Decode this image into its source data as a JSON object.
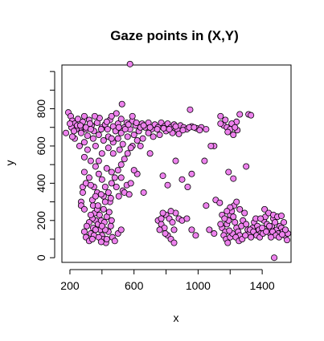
{
  "chart_data": {
    "type": "scatter",
    "title": "Gaze points in (X,Y)",
    "xlabel": "x",
    "ylabel": "y",
    "xlim": [
      150,
      1580
    ],
    "ylim": [
      -25,
      1035
    ],
    "xticks": [
      200,
      600,
      1000,
      1400
    ],
    "yticks": [
      0,
      200,
      400,
      600,
      800
    ],
    "minor_xticks": [
      400,
      800,
      1200
    ],
    "minor_yticks": [
      100,
      300,
      500,
      700,
      900,
      1000
    ],
    "point_color": "#ee82ee",
    "grid": false,
    "legend": "none",
    "points": [
      [
        575,
        1040
      ],
      [
        525,
        825
      ],
      [
        950,
        795
      ],
      [
        175,
        670
      ],
      [
        190,
        780
      ],
      [
        205,
        760
      ],
      [
        215,
        735
      ],
      [
        230,
        720
      ],
      [
        250,
        745
      ],
      [
        265,
        700
      ],
      [
        280,
        730
      ],
      [
        300,
        690
      ],
      [
        320,
        740
      ],
      [
        335,
        710
      ],
      [
        350,
        680
      ],
      [
        370,
        725
      ],
      [
        385,
        750
      ],
      [
        400,
        700
      ],
      [
        420,
        715
      ],
      [
        435,
        690
      ],
      [
        450,
        740
      ],
      [
        470,
        705
      ],
      [
        485,
        680
      ],
      [
        500,
        720
      ],
      [
        520,
        745
      ],
      [
        540,
        700
      ],
      [
        555,
        725
      ],
      [
        575,
        690
      ],
      [
        590,
        735
      ],
      [
        610,
        710
      ],
      [
        630,
        680
      ],
      [
        650,
        720
      ],
      [
        670,
        700
      ],
      [
        690,
        725
      ],
      [
        710,
        690
      ],
      [
        730,
        715
      ],
      [
        750,
        700
      ],
      [
        770,
        725
      ],
      [
        790,
        705
      ],
      [
        810,
        720
      ],
      [
        830,
        700
      ],
      [
        850,
        715
      ],
      [
        870,
        690
      ],
      [
        890,
        710
      ],
      [
        910,
        700
      ],
      [
        930,
        690
      ],
      [
        960,
        705
      ],
      [
        990,
        695
      ],
      [
        1020,
        700
      ],
      [
        1050,
        690
      ],
      [
        210,
        700
      ],
      [
        240,
        690
      ],
      [
        270,
        670
      ],
      [
        310,
        655
      ],
      [
        345,
        640
      ],
      [
        380,
        660
      ],
      [
        410,
        630
      ],
      [
        440,
        650
      ],
      [
        470,
        620
      ],
      [
        500,
        640
      ],
      [
        530,
        610
      ],
      [
        560,
        650
      ],
      [
        590,
        600
      ],
      [
        620,
        630
      ],
      [
        655,
        640
      ],
      [
        690,
        670
      ],
      [
        720,
        650
      ],
      [
        760,
        660
      ],
      [
        800,
        680
      ],
      [
        840,
        670
      ],
      [
        880,
        665
      ],
      [
        230,
        640
      ],
      [
        260,
        600
      ],
      [
        290,
        620
      ],
      [
        300,
        700
      ],
      [
        325,
        720
      ],
      [
        355,
        760
      ],
      [
        460,
        760
      ],
      [
        490,
        775
      ],
      [
        200,
        720
      ],
      [
        215,
        650
      ],
      [
        225,
        680
      ],
      [
        245,
        710
      ],
      [
        290,
        760
      ],
      [
        590,
        760
      ],
      [
        460,
        640
      ],
      [
        520,
        670
      ],
      [
        545,
        690
      ],
      [
        600,
        660
      ],
      [
        640,
        700
      ],
      [
        700,
        700
      ],
      [
        745,
        690
      ],
      [
        785,
        695
      ],
      [
        820,
        690
      ],
      [
        860,
        705
      ],
      [
        905,
        685
      ],
      [
        945,
        700
      ],
      [
        975,
        700
      ],
      [
        1010,
        685
      ],
      [
        265,
        710
      ],
      [
        330,
        690
      ],
      [
        395,
        690
      ],
      [
        430,
        730
      ],
      [
        505,
        700
      ],
      [
        565,
        715
      ],
      [
        615,
        725
      ],
      [
        660,
        710
      ],
      [
        1140,
        760
      ],
      [
        1160,
        710
      ],
      [
        1180,
        700
      ],
      [
        1200,
        690
      ],
      [
        1220,
        660
      ],
      [
        1240,
        730
      ],
      [
        1260,
        770
      ],
      [
        1210,
        720
      ],
      [
        1170,
        740
      ],
      [
        1245,
        685
      ],
      [
        1185,
        675
      ],
      [
        1315,
        770
      ],
      [
        1330,
        765
      ],
      [
        1100,
        600
      ],
      [
        1140,
        720
      ],
      [
        1230,
        700
      ],
      [
        290,
        540
      ],
      [
        330,
        520
      ],
      [
        360,
        490
      ],
      [
        380,
        450
      ],
      [
        400,
        420
      ],
      [
        420,
        380
      ],
      [
        440,
        350
      ],
      [
        460,
        400
      ],
      [
        480,
        430
      ],
      [
        500,
        470
      ],
      [
        520,
        500
      ],
      [
        540,
        530
      ],
      [
        560,
        560
      ],
      [
        580,
        590
      ],
      [
        440,
        590
      ],
      [
        400,
        560
      ],
      [
        360,
        600
      ],
      [
        310,
        580
      ],
      [
        290,
        460
      ],
      [
        320,
        430
      ],
      [
        350,
        380
      ],
      [
        370,
        350
      ],
      [
        410,
        330
      ],
      [
        450,
        300
      ],
      [
        490,
        380
      ],
      [
        530,
        360
      ],
      [
        470,
        560
      ],
      [
        510,
        580
      ],
      [
        280,
        380
      ],
      [
        300,
        400
      ],
      [
        280,
        350
      ],
      [
        270,
        300
      ],
      [
        270,
        280
      ],
      [
        290,
        260
      ],
      [
        330,
        390
      ],
      [
        345,
        280
      ],
      [
        380,
        520
      ],
      [
        430,
        480
      ],
      [
        520,
        430
      ],
      [
        555,
        390
      ],
      [
        540,
        350
      ],
      [
        505,
        330
      ],
      [
        460,
        460
      ],
      [
        580,
        400
      ],
      [
        570,
        340
      ],
      [
        620,
        450
      ],
      [
        660,
        350
      ],
      [
        600,
        470
      ],
      [
        640,
        600
      ],
      [
        700,
        560
      ],
      [
        780,
        440
      ],
      [
        810,
        390
      ],
      [
        860,
        520
      ],
      [
        900,
        420
      ],
      [
        935,
        380
      ],
      [
        960,
        450
      ],
      [
        1040,
        520
      ],
      [
        1080,
        600
      ],
      [
        1110,
        310
      ],
      [
        1135,
        295
      ],
      [
        1190,
        460
      ],
      [
        1220,
        425
      ],
      [
        1300,
        490
      ],
      [
        1050,
        280
      ],
      [
        290,
        140
      ],
      [
        300,
        110
      ],
      [
        320,
        90
      ],
      [
        330,
        130
      ],
      [
        345,
        160
      ],
      [
        360,
        200
      ],
      [
        375,
        180
      ],
      [
        390,
        150
      ],
      [
        400,
        120
      ],
      [
        410,
        100
      ],
      [
        425,
        80
      ],
      [
        440,
        140
      ],
      [
        455,
        170
      ],
      [
        465,
        110
      ],
      [
        480,
        90
      ],
      [
        500,
        130
      ],
      [
        520,
        150
      ],
      [
        340,
        210
      ],
      [
        355,
        240
      ],
      [
        370,
        260
      ],
      [
        385,
        230
      ],
      [
        395,
        200
      ],
      [
        415,
        190
      ],
      [
        430,
        220
      ],
      [
        445,
        245
      ],
      [
        320,
        190
      ],
      [
        305,
        170
      ],
      [
        350,
        120
      ],
      [
        380,
        110
      ],
      [
        420,
        150
      ],
      [
        460,
        200
      ],
      [
        340,
        100
      ],
      [
        395,
        85
      ],
      [
        430,
        100
      ],
      [
        360,
        150
      ],
      [
        400,
        170
      ],
      [
        330,
        230
      ],
      [
        375,
        280
      ],
      [
        410,
        260
      ],
      [
        340,
        310
      ],
      [
        420,
        300
      ],
      [
        455,
        320
      ],
      [
        360,
        330
      ],
      [
        395,
        340
      ],
      [
        750,
        200
      ],
      [
        770,
        180
      ],
      [
        790,
        160
      ],
      [
        800,
        230
      ],
      [
        820,
        210
      ],
      [
        840,
        190
      ],
      [
        850,
        150
      ],
      [
        860,
        240
      ],
      [
        780,
        240
      ],
      [
        810,
        120
      ],
      [
        830,
        100
      ],
      [
        850,
        80
      ],
      [
        760,
        150
      ],
      [
        880,
        210
      ],
      [
        900,
        200
      ],
      [
        930,
        210
      ],
      [
        960,
        150
      ],
      [
        985,
        120
      ],
      [
        795,
        130
      ],
      [
        830,
        250
      ],
      [
        770,
        210
      ],
      [
        1070,
        150
      ],
      [
        1100,
        130
      ],
      [
        1150,
        160
      ],
      [
        1170,
        140
      ],
      [
        1180,
        180
      ],
      [
        1190,
        200
      ],
      [
        1200,
        230
      ],
      [
        1210,
        250
      ],
      [
        1220,
        220
      ],
      [
        1230,
        190
      ],
      [
        1240,
        160
      ],
      [
        1250,
        140
      ],
      [
        1260,
        120
      ],
      [
        1270,
        170
      ],
      [
        1280,
        200
      ],
      [
        1290,
        240
      ],
      [
        1300,
        180
      ],
      [
        1310,
        150
      ],
      [
        1320,
        130
      ],
      [
        1330,
        110
      ],
      [
        1340,
        160
      ],
      [
        1350,
        190
      ],
      [
        1360,
        210
      ],
      [
        1370,
        170
      ],
      [
        1380,
        150
      ],
      [
        1390,
        130
      ],
      [
        1400,
        160
      ],
      [
        1410,
        200
      ],
      [
        1420,
        220
      ],
      [
        1430,
        180
      ],
      [
        1440,
        150
      ],
      [
        1450,
        130
      ],
      [
        1460,
        170
      ],
      [
        1470,
        210
      ],
      [
        1480,
        190
      ],
      [
        1490,
        150
      ],
      [
        1500,
        130
      ],
      [
        1510,
        170
      ],
      [
        1520,
        160
      ],
      [
        1530,
        140
      ],
      [
        1540,
        120
      ],
      [
        1555,
        95
      ],
      [
        1560,
        130
      ],
      [
        1545,
        150
      ],
      [
        1160,
        120
      ],
      [
        1175,
        100
      ],
      [
        1185,
        80
      ],
      [
        1200,
        110
      ],
      [
        1215,
        130
      ],
      [
        1235,
        110
      ],
      [
        1255,
        90
      ],
      [
        1275,
        100
      ],
      [
        1295,
        120
      ],
      [
        1225,
        280
      ],
      [
        1240,
        300
      ],
      [
        1200,
        270
      ],
      [
        1180,
        250
      ],
      [
        1260,
        260
      ],
      [
        1140,
        180
      ],
      [
        1150,
        230
      ],
      [
        1165,
        210
      ],
      [
        1195,
        145
      ],
      [
        1325,
        150
      ],
      [
        1345,
        140
      ],
      [
        1365,
        120
      ],
      [
        1385,
        110
      ],
      [
        1405,
        130
      ],
      [
        1425,
        140
      ],
      [
        1445,
        170
      ],
      [
        1465,
        140
      ],
      [
        1485,
        120
      ],
      [
        1505,
        110
      ],
      [
        1525,
        125
      ],
      [
        1415,
        260
      ],
      [
        1440,
        240
      ],
      [
        1390,
        210
      ],
      [
        1470,
        230
      ],
      [
        1495,
        220
      ],
      [
        1520,
        225
      ],
      [
        1535,
        190
      ],
      [
        1475,
        0
      ],
      [
        1455,
        110
      ]
    ]
  }
}
